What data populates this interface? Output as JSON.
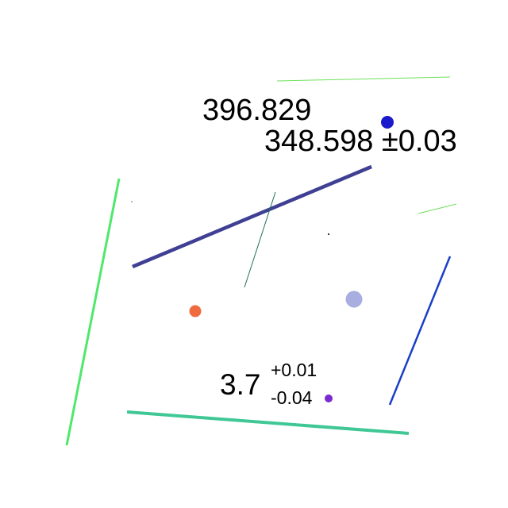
{
  "texts": {
    "value_a": "396.829",
    "value_b": "348.598 ±0.03",
    "value_c_main": "3.7",
    "value_c_plus": "+0.01",
    "value_c_minus": "-0.04"
  },
  "colors": {
    "background": "#ffffff",
    "text": "#000000",
    "navy_line": "#3f3f94",
    "bright_green_line": "#4ee86a",
    "teal_line": "#3fc896",
    "blue_line": "#1a3fc8",
    "light_green_line": "#6ee05a",
    "dark_teal_line": "#1e6e5a",
    "blue_dot": "#1a1acc",
    "lavender_dot": "#a8aee0",
    "orange_dot": "#f06a40",
    "purple_dot": "#7a2ad0"
  }
}
